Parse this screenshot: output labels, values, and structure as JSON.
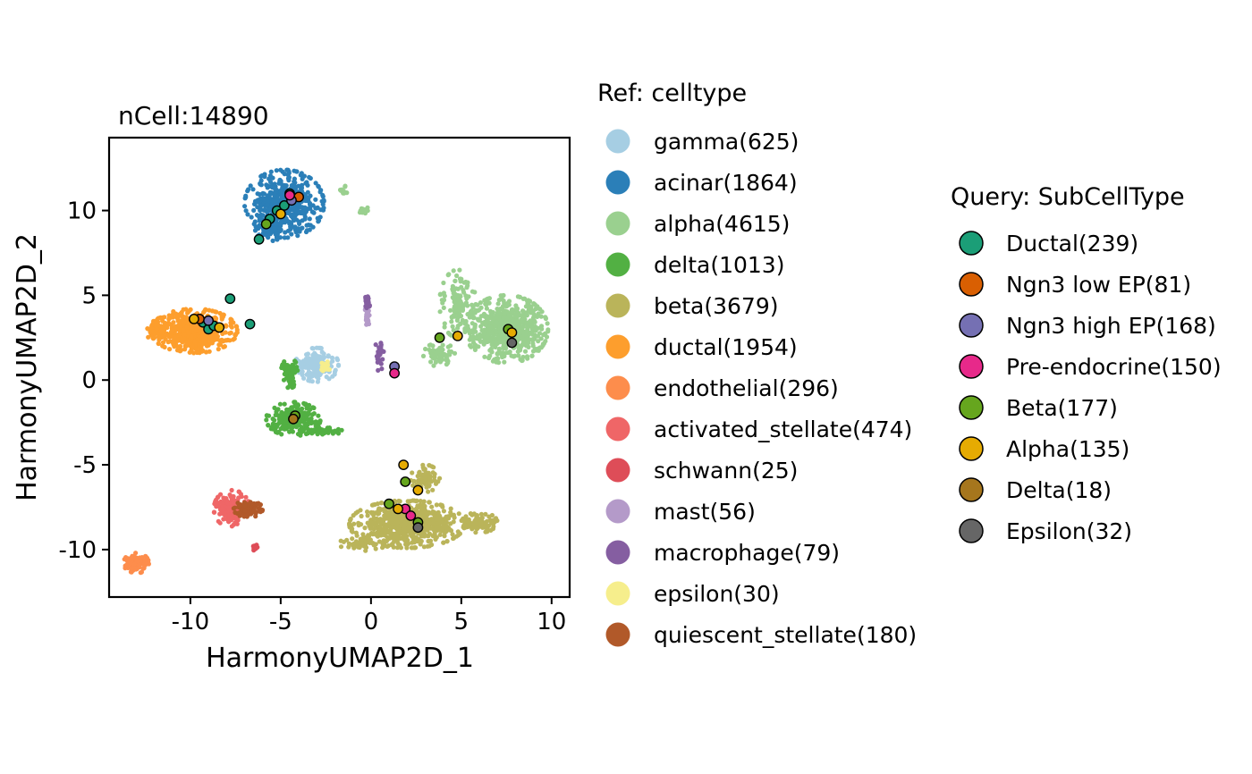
{
  "chart_data": {
    "type": "scatter",
    "title": "nCell:14890",
    "xlabel": "HarmonyUMAP2D_1",
    "ylabel": "HarmonyUMAP2D_2",
    "xlim": [
      -14.5,
      11
    ],
    "ylim": [
      -12.8,
      14.3
    ],
    "x_ticks": [
      -10,
      -5,
      0,
      5,
      10
    ],
    "y_ticks": [
      -10,
      -5,
      0,
      5,
      10
    ],
    "grid": false,
    "legend_placement": "right",
    "ref_legend": {
      "title": "Ref: celltype",
      "entries": [
        {
          "label": "gamma(625)",
          "color": "#a6cee3"
        },
        {
          "label": "acinar(1864)",
          "color": "#2b7fb8"
        },
        {
          "label": "alpha(4615)",
          "color": "#9ad08f"
        },
        {
          "label": "delta(1013)",
          "color": "#52b043"
        },
        {
          "label": "beta(3679)",
          "color": "#bab45a"
        },
        {
          "label": "ductal(1954)",
          "color": "#fd9e2d"
        },
        {
          "label": "endothelial(296)",
          "color": "#fd8d4c"
        },
        {
          "label": "activated_stellate(474)",
          "color": "#ef6667"
        },
        {
          "label": "schwann(25)",
          "color": "#de4d58"
        },
        {
          "label": "mast(56)",
          "color": "#b49ac9"
        },
        {
          "label": "macrophage(79)",
          "color": "#855ea1"
        },
        {
          "label": "epsilon(30)",
          "color": "#f6ee8c"
        },
        {
          "label": "quiescent_stellate(180)",
          "color": "#b15929"
        }
      ]
    },
    "query_legend": {
      "title": "Query: SubCellType",
      "entries": [
        {
          "label": "Ductal(239)",
          "color": "#1b9e77"
        },
        {
          "label": "Ngn3 low EP(81)",
          "color": "#d95f02"
        },
        {
          "label": "Ngn3 high EP(168)",
          "color": "#7570b3"
        },
        {
          "label": "Pre-endocrine(150)",
          "color": "#e7298a"
        },
        {
          "label": "Beta(177)",
          "color": "#66a61e"
        },
        {
          "label": "Alpha(135)",
          "color": "#e6ab02"
        },
        {
          "label": "Delta(18)",
          "color": "#a6761d"
        },
        {
          "label": "Epsilon(32)",
          "color": "#666666"
        }
      ]
    },
    "ref_clusters": [
      {
        "celltype": "acinar(1864)",
        "cx": -4.8,
        "cy": 10.4,
        "rx": 2.2,
        "ry": 2.0,
        "n": 650
      },
      {
        "celltype": "acinar(1864)",
        "cx": -5.6,
        "cy": 9.0,
        "rx": 0.9,
        "ry": 0.8,
        "n": 120
      },
      {
        "celltype": "alpha(4615)",
        "cx": 7.5,
        "cy": 3.0,
        "rx": 2.3,
        "ry": 2.0,
        "n": 900
      },
      {
        "celltype": "alpha(4615)",
        "cx": 4.8,
        "cy": 4.5,
        "rx": 1.0,
        "ry": 2.0,
        "n": 160
      },
      {
        "celltype": "alpha(4615)",
        "cx": 3.8,
        "cy": 1.5,
        "rx": 0.9,
        "ry": 0.7,
        "n": 70
      },
      {
        "celltype": "alpha(4615)",
        "cx": -1.6,
        "cy": 11.2,
        "rx": 0.3,
        "ry": 0.3,
        "n": 14
      },
      {
        "celltype": "alpha(4615)",
        "cx": -0.5,
        "cy": 10.0,
        "rx": 0.6,
        "ry": 0.2,
        "n": 14
      },
      {
        "celltype": "ductal(1954)",
        "cx": -9.8,
        "cy": 2.9,
        "rx": 2.4,
        "ry": 1.3,
        "n": 700
      },
      {
        "celltype": "ductal(1954)",
        "cx": -11.8,
        "cy": 2.9,
        "rx": 0.8,
        "ry": 0.6,
        "n": 80
      },
      {
        "celltype": "gamma(625)",
        "cx": -3.0,
        "cy": 0.9,
        "rx": 1.2,
        "ry": 1.0,
        "n": 200
      },
      {
        "celltype": "delta(1013)",
        "cx": -4.3,
        "cy": -2.3,
        "rx": 1.5,
        "ry": 1.0,
        "n": 300
      },
      {
        "celltype": "delta(1013)",
        "cx": -2.8,
        "cy": -3.0,
        "rx": 1.5,
        "ry": 0.2,
        "n": 60
      },
      {
        "celltype": "delta(1013)",
        "cx": -4.5,
        "cy": 0.3,
        "rx": 0.5,
        "ry": 1.0,
        "n": 80
      },
      {
        "celltype": "beta(3679)",
        "cx": 2.0,
        "cy": -8.5,
        "rx": 3.2,
        "ry": 1.4,
        "n": 900
      },
      {
        "celltype": "beta(3679)",
        "cx": 6.0,
        "cy": -8.4,
        "rx": 1.0,
        "ry": 0.6,
        "n": 120
      },
      {
        "celltype": "beta(3679)",
        "cx": 3.0,
        "cy": -5.8,
        "rx": 0.8,
        "ry": 0.8,
        "n": 80
      },
      {
        "celltype": "beta(3679)",
        "cx": -0.6,
        "cy": -9.6,
        "rx": 1.5,
        "ry": 0.5,
        "n": 60
      },
      {
        "celltype": "activated_stellate(474)",
        "cx": -7.7,
        "cy": -7.6,
        "rx": 1.0,
        "ry": 1.1,
        "n": 220
      },
      {
        "celltype": "quiescent_stellate(180)",
        "cx": -6.8,
        "cy": -7.6,
        "rx": 0.8,
        "ry": 0.5,
        "n": 120
      },
      {
        "celltype": "endothelial(296)",
        "cx": -13.0,
        "cy": -10.8,
        "rx": 0.7,
        "ry": 0.6,
        "n": 150
      },
      {
        "celltype": "schwann(25)",
        "cx": -6.4,
        "cy": -9.9,
        "rx": 0.15,
        "ry": 0.2,
        "n": 20
      },
      {
        "celltype": "mast(56)",
        "cx": -0.2,
        "cy": 3.8,
        "rx": 0.15,
        "ry": 0.6,
        "n": 40
      },
      {
        "celltype": "macrophage(79)",
        "cx": -0.2,
        "cy": 4.6,
        "rx": 0.15,
        "ry": 0.4,
        "n": 40
      },
      {
        "celltype": "macrophage(79)",
        "cx": 0.5,
        "cy": 1.5,
        "rx": 0.3,
        "ry": 1.0,
        "n": 30
      },
      {
        "celltype": "epsilon(30)",
        "cx": -2.5,
        "cy": 0.8,
        "rx": 0.3,
        "ry": 0.3,
        "n": 25
      }
    ],
    "query_points": [
      {
        "subcelltype": "Ductal(239)",
        "x": -9.3,
        "y": 3.4
      },
      {
        "subcelltype": "Ductal(239)",
        "x": -9.0,
        "y": 3.0
      },
      {
        "subcelltype": "Ductal(239)",
        "x": -8.7,
        "y": 3.2
      },
      {
        "subcelltype": "Ductal(239)",
        "x": -7.8,
        "y": 4.8
      },
      {
        "subcelltype": "Ductal(239)",
        "x": -6.7,
        "y": 3.3
      },
      {
        "subcelltype": "Ductal(239)",
        "x": -6.2,
        "y": 8.3
      },
      {
        "subcelltype": "Ductal(239)",
        "x": -5.6,
        "y": 9.5
      },
      {
        "subcelltype": "Ductal(239)",
        "x": -5.2,
        "y": 10.0
      },
      {
        "subcelltype": "Ductal(239)",
        "x": -4.5,
        "y": 11.0
      },
      {
        "subcelltype": "Ductal(239)",
        "x": -4.8,
        "y": 10.3
      },
      {
        "subcelltype": "Ngn3 low EP(81)",
        "x": -9.5,
        "y": 3.6
      },
      {
        "subcelltype": "Ngn3 low EP(81)",
        "x": -4.0,
        "y": 10.8
      },
      {
        "subcelltype": "Ngn3 high EP(168)",
        "x": -9.0,
        "y": 3.5
      },
      {
        "subcelltype": "Ngn3 high EP(168)",
        "x": -4.4,
        "y": 10.6
      },
      {
        "subcelltype": "Ngn3 high EP(168)",
        "x": 1.3,
        "y": 0.8
      },
      {
        "subcelltype": "Pre-endocrine(150)",
        "x": -4.5,
        "y": 10.9
      },
      {
        "subcelltype": "Pre-endocrine(150)",
        "x": 1.3,
        "y": 0.4
      },
      {
        "subcelltype": "Pre-endocrine(150)",
        "x": 1.9,
        "y": -7.6
      },
      {
        "subcelltype": "Pre-endocrine(150)",
        "x": 2.2,
        "y": -8.0
      },
      {
        "subcelltype": "Beta(177)",
        "x": -5.8,
        "y": 9.2
      },
      {
        "subcelltype": "Beta(177)",
        "x": -4.2,
        "y": -2.1
      },
      {
        "subcelltype": "Beta(177)",
        "x": 3.8,
        "y": 2.5
      },
      {
        "subcelltype": "Beta(177)",
        "x": 1.9,
        "y": -6.0
      },
      {
        "subcelltype": "Beta(177)",
        "x": 1.0,
        "y": -7.3
      },
      {
        "subcelltype": "Beta(177)",
        "x": 2.6,
        "y": -8.4
      },
      {
        "subcelltype": "Beta(177)",
        "x": 7.6,
        "y": 3.0
      },
      {
        "subcelltype": "Alpha(135)",
        "x": -9.8,
        "y": 3.6
      },
      {
        "subcelltype": "Alpha(135)",
        "x": -8.4,
        "y": 3.1
      },
      {
        "subcelltype": "Alpha(135)",
        "x": -5.0,
        "y": 9.8
      },
      {
        "subcelltype": "Alpha(135)",
        "x": 4.8,
        "y": 2.6
      },
      {
        "subcelltype": "Alpha(135)",
        "x": 1.8,
        "y": -5.0
      },
      {
        "subcelltype": "Alpha(135)",
        "x": 2.6,
        "y": -6.5
      },
      {
        "subcelltype": "Alpha(135)",
        "x": 1.5,
        "y": -7.6
      },
      {
        "subcelltype": "Alpha(135)",
        "x": 7.8,
        "y": 2.8
      },
      {
        "subcelltype": "Delta(18)",
        "x": -4.3,
        "y": -2.3
      },
      {
        "subcelltype": "Epsilon(32)",
        "x": 7.8,
        "y": 2.2
      },
      {
        "subcelltype": "Epsilon(32)",
        "x": 2.6,
        "y": -8.7
      }
    ]
  }
}
